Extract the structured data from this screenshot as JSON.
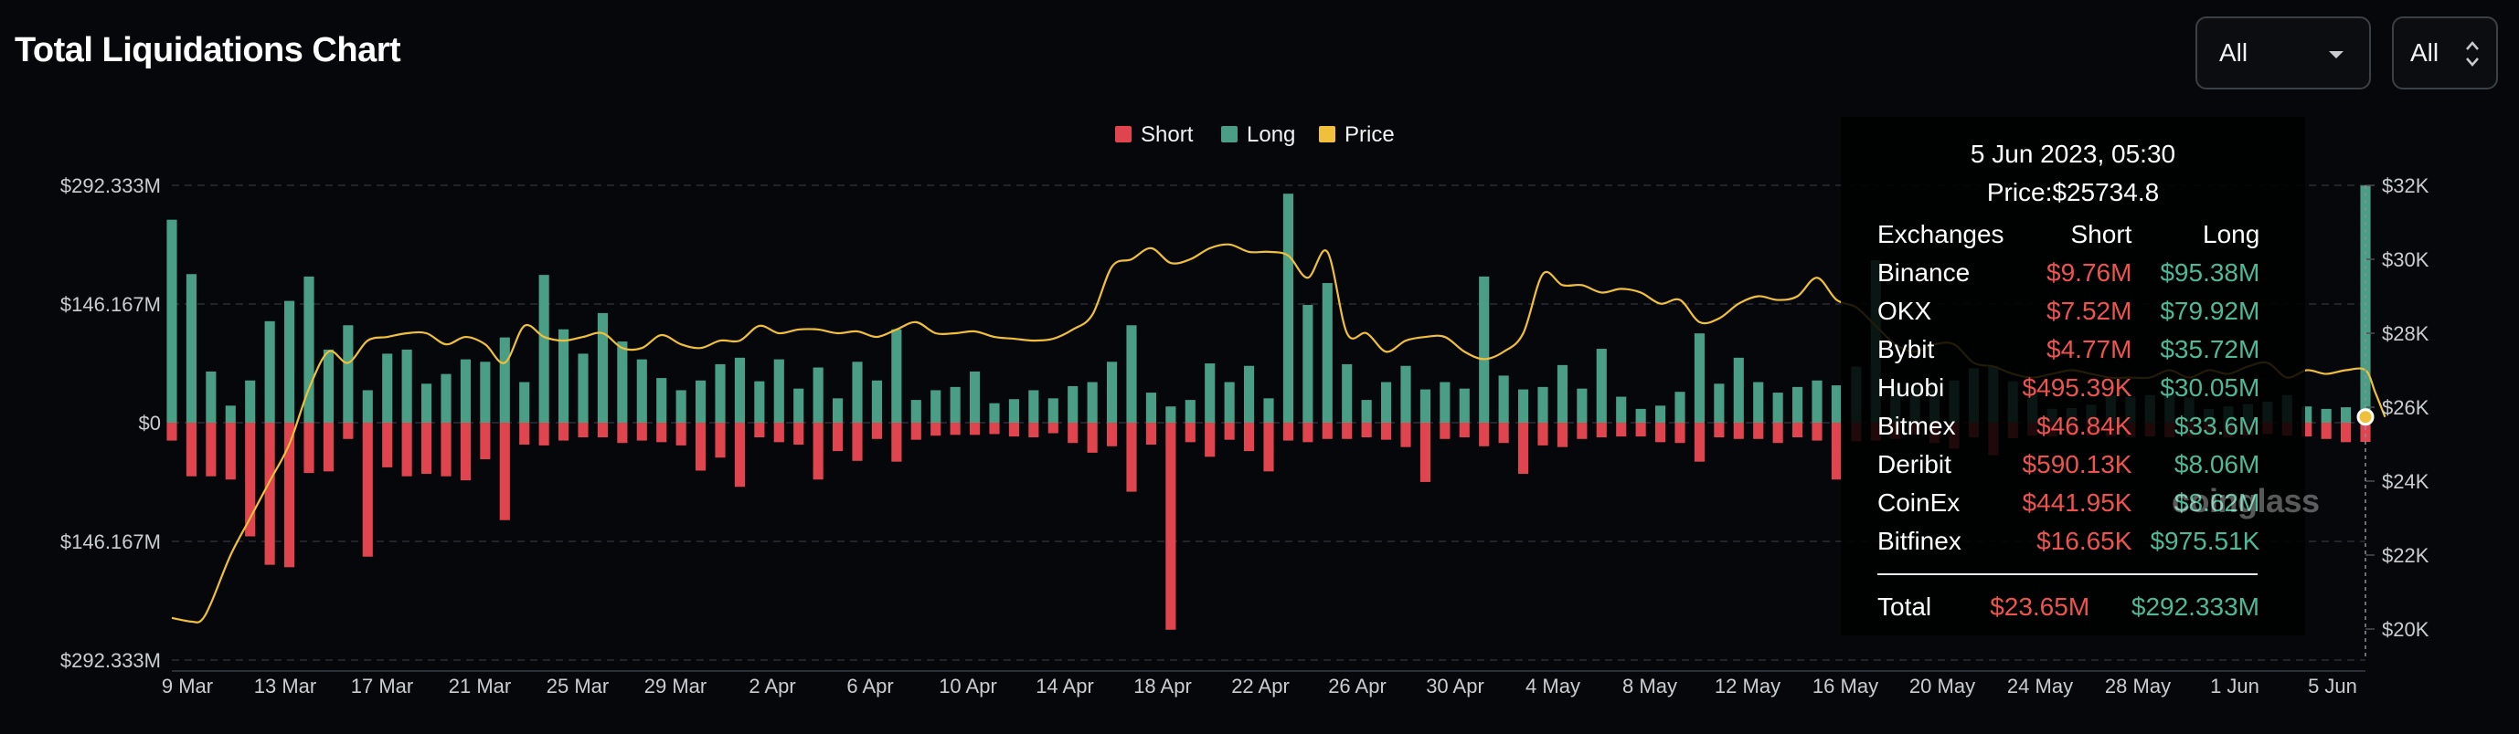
{
  "header": {
    "title": "Total Liquidations Chart"
  },
  "controls": {
    "exchange_select": "All",
    "range_select": "All"
  },
  "tooltip": {
    "date": "5 Jun 2023, 05:30",
    "price": "Price:$25734.8",
    "columns": [
      "Exchanges",
      "Short",
      "Long"
    ],
    "rows": [
      {
        "exchange": "Binance",
        "short": "$9.76M",
        "long": "$95.38M"
      },
      {
        "exchange": "OKX",
        "short": "$7.52M",
        "long": "$79.92M"
      },
      {
        "exchange": "Bybit",
        "short": "$4.77M",
        "long": "$35.72M"
      },
      {
        "exchange": "Huobi",
        "short": "$495.39K",
        "long": "$30.05M"
      },
      {
        "exchange": "Bitmex",
        "short": "$46.84K",
        "long": "$33.6M"
      },
      {
        "exchange": "Deribit",
        "short": "$590.13K",
        "long": "$8.06M"
      },
      {
        "exchange": "CoinEx",
        "short": "$441.95K",
        "long": "$8.62M"
      },
      {
        "exchange": "Bitfinex",
        "short": "$16.65K",
        "long": "$975.51K"
      }
    ],
    "total": {
      "label": "Total",
      "short": "$23.65M",
      "long": "$292.333M"
    }
  },
  "watermark": "coinglass",
  "chart_data": {
    "type": "bar",
    "colors": {
      "short": "#e0444e",
      "long": "#4a9e85",
      "price": "#f0c03a"
    },
    "legend": [
      "Short",
      "Long",
      "Price"
    ],
    "x_tick_labels": [
      "9 Mar",
      "13 Mar",
      "17 Mar",
      "21 Mar",
      "25 Mar",
      "29 Mar",
      "2 Apr",
      "6 Apr",
      "10 Apr",
      "14 Apr",
      "18 Apr",
      "22 Apr",
      "26 Apr",
      "30 Apr",
      "4 May",
      "8 May",
      "12 May",
      "16 May",
      "20 May",
      "24 May",
      "28 May",
      "1 Jun",
      "5 Jun"
    ],
    "y_left_ticks": [
      "$292.333M",
      "$146.167M",
      "$0",
      "$146.167M",
      "$292.333M"
    ],
    "y_left_range": [
      -292.333,
      292.333
    ],
    "y_right_ticks": [
      "$32K",
      "$30K",
      "$28K",
      "$26K",
      "$24K",
      "$22K",
      "$20K"
    ],
    "y_right_range": [
      19500,
      32000
    ],
    "grid": true,
    "legend_position": "top-center",
    "long_values_M": [
      250,
      183,
      63,
      21,
      52,
      125,
      150,
      180,
      90,
      120,
      40,
      85,
      90,
      48,
      60,
      78,
      75,
      105,
      50,
      182,
      115,
      85,
      135,
      100,
      78,
      55,
      40,
      52,
      72,
      80,
      51,
      78,
      42,
      68,
      30,
      75,
      52,
      115,
      28,
      40,
      44,
      63,
      24,
      29,
      40,
      30,
      45,
      50,
      75,
      120,
      37,
      20,
      28,
      73,
      50,
      70,
      30,
      282,
      145,
      172,
      72,
      28,
      50,
      70,
      41,
      50,
      42,
      180,
      58,
      41,
      44,
      71,
      42,
      91,
      32,
      17,
      21,
      38,
      110,
      48,
      80,
      50,
      37,
      44,
      52,
      46,
      69,
      200,
      45,
      43,
      40,
      52,
      67,
      70,
      51,
      40,
      17,
      18,
      22,
      34,
      32,
      34,
      36,
      31,
      17,
      20,
      23,
      26,
      34,
      20,
      17,
      19,
      292
    ],
    "short_values_M": [
      22,
      66,
      66,
      70,
      140,
      175,
      178,
      62,
      60,
      20,
      165,
      55,
      66,
      63,
      66,
      71,
      45,
      120,
      27,
      28,
      22,
      18,
      18,
      25,
      22,
      24,
      28,
      59,
      43,
      79,
      18,
      24,
      27,
      70,
      35,
      47,
      20,
      48,
      21,
      16,
      15,
      15,
      14,
      17,
      18,
      13,
      25,
      37,
      29,
      85,
      27,
      255,
      24,
      42,
      21,
      35,
      60,
      22,
      24,
      20,
      20,
      18,
      21,
      30,
      73,
      20,
      18,
      29,
      25,
      63,
      28,
      30,
      20,
      18,
      17,
      17,
      24,
      25,
      48,
      18,
      20,
      20,
      25,
      18,
      22,
      70,
      23,
      22,
      20,
      14,
      25,
      32,
      18,
      40,
      19,
      16,
      17,
      16,
      16,
      17,
      18,
      17,
      18,
      16,
      12,
      18,
      16,
      14,
      16,
      17,
      20,
      24,
      23.65
    ],
    "price_series": [
      [
        0,
        20300
      ],
      [
        1,
        20200
      ],
      [
        1.5,
        20230
      ],
      [
        2,
        20700
      ],
      [
        3,
        22000
      ],
      [
        4,
        23000
      ],
      [
        5,
        24000
      ],
      [
        6,
        25000
      ],
      [
        7,
        26500
      ],
      [
        8,
        27500
      ],
      [
        9,
        27200
      ],
      [
        10,
        27800
      ],
      [
        11,
        27900
      ],
      [
        12,
        28000
      ],
      [
        13,
        28000
      ],
      [
        14,
        27700
      ],
      [
        15,
        27900
      ],
      [
        16,
        27700
      ],
      [
        17,
        27200
      ],
      [
        18,
        28200
      ],
      [
        19,
        27900
      ],
      [
        20,
        27800
      ],
      [
        21,
        27900
      ],
      [
        22,
        28000
      ],
      [
        23,
        27600
      ],
      [
        24,
        27600
      ],
      [
        25,
        27950
      ],
      [
        26,
        27700
      ],
      [
        27,
        27600
      ],
      [
        28,
        27800
      ],
      [
        29,
        27800
      ],
      [
        30,
        28200
      ],
      [
        31,
        28000
      ],
      [
        32,
        28100
      ],
      [
        33,
        28100
      ],
      [
        34,
        28000
      ],
      [
        35,
        28050
      ],
      [
        36,
        27900
      ],
      [
        37,
        28100
      ],
      [
        38,
        28300
      ],
      [
        39,
        28000
      ],
      [
        40,
        28000
      ],
      [
        41,
        28050
      ],
      [
        42,
        27900
      ],
      [
        43,
        27850
      ],
      [
        44,
        27800
      ],
      [
        45,
        27850
      ],
      [
        46,
        28100
      ],
      [
        47,
        28500
      ],
      [
        48,
        29800
      ],
      [
        49,
        30000
      ],
      [
        50,
        30300
      ],
      [
        51,
        29900
      ],
      [
        52,
        30000
      ],
      [
        53,
        30300
      ],
      [
        54,
        30400
      ],
      [
        55,
        30200
      ],
      [
        56,
        30200
      ],
      [
        57,
        30100
      ],
      [
        58,
        29500
      ],
      [
        59,
        30200
      ],
      [
        60,
        28000
      ],
      [
        61,
        28000
      ],
      [
        62,
        27500
      ],
      [
        63,
        27800
      ],
      [
        64,
        27900
      ],
      [
        65,
        27900
      ],
      [
        66,
        27500
      ],
      [
        67,
        27300
      ],
      [
        68,
        27500
      ],
      [
        69,
        28000
      ],
      [
        70,
        29600
      ],
      [
        71,
        29300
      ],
      [
        72,
        29300
      ],
      [
        73,
        29100
      ],
      [
        74,
        29200
      ],
      [
        75,
        29100
      ],
      [
        76,
        28800
      ],
      [
        77,
        28900
      ],
      [
        78,
        28300
      ],
      [
        79,
        28400
      ],
      [
        80,
        28800
      ],
      [
        81,
        29000
      ],
      [
        82,
        28900
      ],
      [
        83,
        29000
      ],
      [
        84,
        29500
      ],
      [
        85,
        28900
      ],
      [
        86,
        28700
      ],
      [
        87,
        28200
      ],
      [
        88,
        27700
      ],
      [
        89,
        27500
      ],
      [
        90,
        27700
      ],
      [
        91,
        27700
      ],
      [
        92,
        27200
      ],
      [
        93,
        27100
      ],
      [
        94,
        26900
      ],
      [
        95,
        26800
      ],
      [
        96,
        26900
      ],
      [
        97,
        27000
      ],
      [
        98,
        26900
      ],
      [
        99,
        26800
      ],
      [
        100,
        26800
      ],
      [
        101,
        26800
      ],
      [
        102,
        27000
      ],
      [
        103,
        26800
      ],
      [
        104,
        27000
      ],
      [
        105,
        26900
      ],
      [
        106,
        27100
      ],
      [
        107,
        27200
      ],
      [
        108,
        26800
      ],
      [
        109,
        27000
      ],
      [
        110,
        26900
      ],
      [
        111,
        27000
      ],
      [
        112,
        27000
      ],
      [
        112.5,
        26400
      ],
      [
        113,
        25734.8
      ]
    ]
  }
}
